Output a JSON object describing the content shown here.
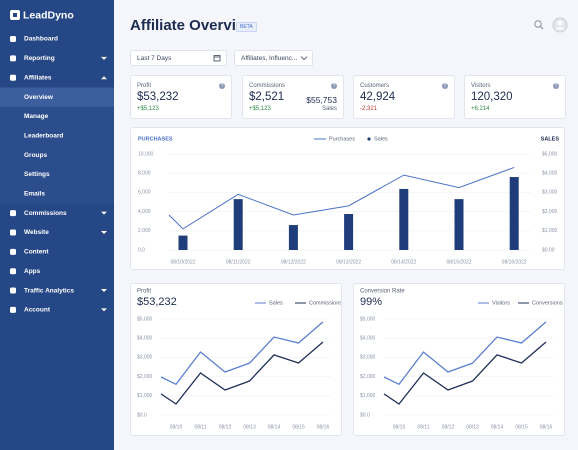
{
  "sidebar": {
    "logo": "LeadDyno",
    "items": [
      "Dashboard",
      "Reporting",
      "Affiliates",
      "Overview",
      "Manage",
      "Leaderboard",
      "Groups",
      "Settings",
      "Emails",
      "Commissions",
      "Website",
      "Content",
      "Apps",
      "Traffic Analytics",
      "Account"
    ]
  },
  "header": {
    "title": "Affiliate Overview",
    "badge": "BETA"
  },
  "filters": [
    "Last 7 Days",
    "Affiliates, Influenc..."
  ],
  "cards": [
    {
      "label": "Profit",
      "value": "$53,232",
      "change": "+$5,123"
    },
    {
      "label": "Commissions",
      "value": "$2,521",
      "change": "+$5,123",
      "side_value": "$55,753",
      "side_label": "Sales"
    },
    {
      "label": "Customers",
      "value": "42,924",
      "change": "-2,321"
    },
    {
      "label": "Visitors",
      "value": "120,320",
      "change": "+6,214"
    }
  ],
  "chart_data": [
    {
      "type": "combo",
      "y_label": "PURCHASES",
      "y2_label": "SALES",
      "categories": [
        null,
        "08/10/2022",
        "08/11/2022",
        "08/12/2022",
        "08/13/2022",
        "08/14/2022",
        "08/15/2022",
        "08/16/2022"
      ],
      "series": [
        {
          "name": "Purchases",
          "type": "line",
          "color": "#4a72c8",
          "values": [
            3650,
            2200,
            5800,
            3650,
            4600,
            7800,
            6500,
            8600
          ]
        },
        {
          "name": "Sales",
          "type": "bar",
          "axis": "y2",
          "color": "#1f3d7a",
          "values": [
            null,
            750,
            2650,
            1300,
            1875,
            3180,
            2650,
            3800
          ]
        }
      ],
      "ylim": [
        0,
        10000
      ],
      "yticks": [
        {
          "value": 0,
          "label": "0.0"
        },
        {
          "value": 2000,
          "label": "2,000"
        },
        {
          "value": 4000,
          "label": "4,000"
        },
        {
          "value": 6000,
          "label": "6,000"
        },
        {
          "value": 8000,
          "label": "8,000"
        },
        {
          "value": 10000,
          "label": "10,000"
        }
      ],
      "y2lim": [
        0,
        5000
      ],
      "y2ticks": [
        {
          "value": 0,
          "label": "$0.00"
        },
        {
          "value": 1000,
          "label": "$1,000"
        },
        {
          "value": 2000,
          "label": "$2,000"
        },
        {
          "value": 3000,
          "label": "$3,000"
        },
        {
          "value": 4000,
          "label": "$4,000"
        },
        {
          "value": 5000,
          "label": "$5,000"
        }
      ],
      "legend": "top"
    },
    {
      "type": "line",
      "title": "Profit",
      "value": "$53,232",
      "categories": [
        null,
        "08/10",
        "08/11",
        "08/12",
        "08/13",
        "08/14",
        "08/15",
        "08/16"
      ],
      "series": [
        {
          "name": "Sales",
          "color": "#5b7fd0",
          "values": [
            1980,
            1600,
            3280,
            2240,
            2700,
            4060,
            3750,
            4850
          ]
        },
        {
          "name": "Commissions",
          "color": "#1f2f5a",
          "values": [
            1100,
            570,
            2190,
            1300,
            1770,
            3130,
            2710,
            3800
          ]
        }
      ],
      "ylim": [
        0,
        5000
      ],
      "yticks": [
        {
          "value": 0,
          "label": "$0.0"
        },
        {
          "value": 1000,
          "label": "$1,000"
        },
        {
          "value": 2000,
          "label": "$2,000"
        },
        {
          "value": 3000,
          "label": "$3,000"
        },
        {
          "value": 4000,
          "label": "$4,000"
        },
        {
          "value": 5000,
          "label": "$5,000"
        }
      ],
      "legend": "top-right"
    },
    {
      "type": "line",
      "title": "Conversion Rate",
      "value": "99%",
      "categories": [
        null,
        "08/10",
        "08/11",
        "08/12",
        "08/13",
        "08/14",
        "08/15",
        "08/16"
      ],
      "series": [
        {
          "name": "Visitors",
          "color": "#5b7fd0",
          "values": [
            1980,
            1600,
            3280,
            2240,
            2700,
            4060,
            3750,
            4850
          ]
        },
        {
          "name": "Conversions",
          "color": "#1f2f5a",
          "values": [
            1100,
            570,
            2190,
            1300,
            1770,
            3130,
            2710,
            3800
          ]
        }
      ],
      "ylim": [
        0,
        5000
      ],
      "yticks": [
        {
          "value": 0,
          "label": "$0.0"
        },
        {
          "value": 1000,
          "label": "$1,000"
        },
        {
          "value": 2000,
          "label": "$2,000"
        },
        {
          "value": 3000,
          "label": "$3,000"
        },
        {
          "value": 4000,
          "label": "$4,000"
        },
        {
          "value": 5000,
          "label": "$5,000"
        }
      ],
      "legend": "top-right"
    }
  ]
}
